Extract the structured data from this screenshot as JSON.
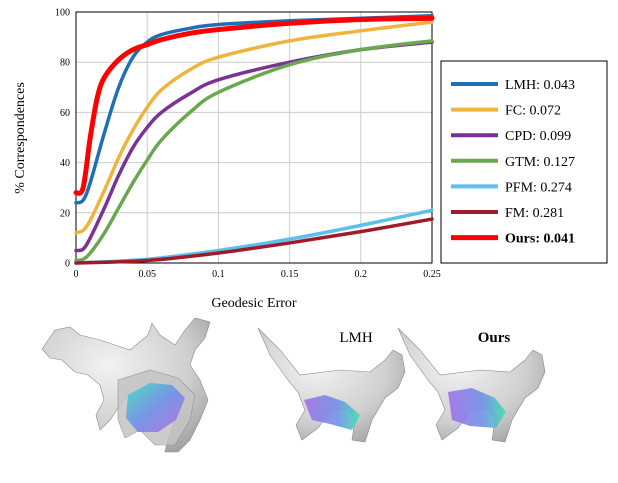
{
  "chart_data": {
    "type": "line",
    "xlabel": "Geodesic Error",
    "ylabel": "% Correspondences",
    "xlim": [
      0,
      0.25
    ],
    "ylim": [
      0,
      100
    ],
    "xticks": [
      "0",
      "0.05",
      "0.1",
      "0.15",
      "0.2",
      "0.25"
    ],
    "yticks": [
      "0",
      "20",
      "40",
      "60",
      "80",
      "100"
    ],
    "grid": true,
    "legend": "right",
    "series": [
      {
        "name": "LMH: 0.043",
        "color": "#1f6fb4",
        "x": [
          0,
          0.005,
          0.01,
          0.02,
          0.03,
          0.04,
          0.05,
          0.06,
          0.08,
          0.1,
          0.15,
          0.2,
          0.25
        ],
        "y": [
          24,
          25,
          32,
          52,
          70,
          82,
          88,
          91,
          93.5,
          95,
          96.5,
          97.5,
          98.5
        ]
      },
      {
        "name": "FC: 0.072",
        "color": "#f0b43c",
        "x": [
          0,
          0.005,
          0.01,
          0.02,
          0.03,
          0.04,
          0.05,
          0.06,
          0.08,
          0.1,
          0.15,
          0.2,
          0.25
        ],
        "y": [
          12,
          13,
          17,
          29,
          42,
          53,
          62,
          69,
          77,
          82,
          88.5,
          92.5,
          96
        ]
      },
      {
        "name": "CPD: 0.099",
        "color": "#7b3294",
        "x": [
          0,
          0.005,
          0.01,
          0.02,
          0.03,
          0.04,
          0.05,
          0.06,
          0.08,
          0.1,
          0.15,
          0.2,
          0.25
        ],
        "y": [
          5,
          5.5,
          10,
          22,
          35,
          46,
          54,
          60,
          67.5,
          73,
          80,
          85,
          88
        ]
      },
      {
        "name": "GTM: 0.127",
        "color": "#6aa84f",
        "x": [
          0,
          0.005,
          0.01,
          0.02,
          0.03,
          0.04,
          0.05,
          0.06,
          0.08,
          0.1,
          0.15,
          0.2,
          0.25
        ],
        "y": [
          1,
          1.5,
          4,
          12,
          22,
          32,
          41,
          49,
          60,
          68,
          79,
          85,
          88.5
        ]
      },
      {
        "name": "PFM: 0.274",
        "color": "#5bc0eb",
        "x": [
          0,
          0.05,
          0.1,
          0.15,
          0.2,
          0.25
        ],
        "y": [
          0,
          1.5,
          5,
          9.5,
          15,
          21
        ]
      },
      {
        "name": "FM: 0.281",
        "color": "#a2192b",
        "x": [
          0,
          0.05,
          0.1,
          0.15,
          0.2,
          0.25
        ],
        "y": [
          0,
          1,
          4,
          8,
          12.5,
          17.5
        ]
      },
      {
        "name": "Ours: 0.041",
        "color": "#ff0000",
        "bold": true,
        "x": [
          0,
          0.005,
          0.01,
          0.015,
          0.02,
          0.03,
          0.04,
          0.05,
          0.06,
          0.08,
          0.1,
          0.15,
          0.2,
          0.25
        ],
        "y": [
          28,
          30,
          50,
          66,
          74,
          81,
          85,
          87,
          89,
          91.5,
          93,
          95.5,
          97,
          97.5
        ]
      }
    ]
  },
  "captions": {
    "left": "LMH",
    "right": "Ours"
  },
  "colors": {
    "surface": "#d4d4d4",
    "surface_shadow": "#a8a8a8"
  }
}
